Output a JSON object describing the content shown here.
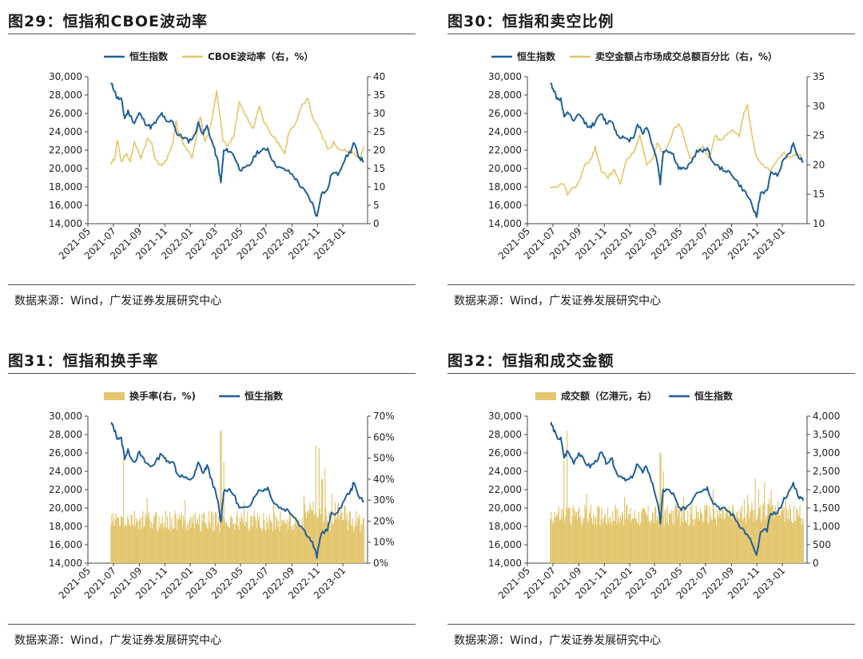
{
  "colors": {
    "index": "#1f5f99",
    "secondary": "#e6c565",
    "bar": "#e3c66e"
  },
  "months": [
    "2021-05",
    "2021-07",
    "2021-09",
    "2021-11",
    "2022-01",
    "2022-03",
    "2022-05",
    "2022-07",
    "2022-09",
    "2022-11",
    "2023-01"
  ],
  "hsi_shape": [
    [
      "2021-06-25",
      29300
    ],
    [
      "2021-07-01",
      28800
    ],
    [
      "2021-07-10",
      27700
    ],
    [
      "2021-07-20",
      27500
    ],
    [
      "2021-07-28",
      25500
    ],
    [
      "2021-08-05",
      26200
    ],
    [
      "2021-08-20",
      25000
    ],
    [
      "2021-09-01",
      26000
    ],
    [
      "2021-09-15",
      25000
    ],
    [
      "2021-09-28",
      24500
    ],
    [
      "2021-10-10",
      25000
    ],
    [
      "2021-10-25",
      26000
    ],
    [
      "2021-11-05",
      25000
    ],
    [
      "2021-11-20",
      25200
    ],
    [
      "2021-12-01",
      23700
    ],
    [
      "2021-12-15",
      23400
    ],
    [
      "2021-12-28",
      23000
    ],
    [
      "2022-01-10",
      23500
    ],
    [
      "2022-01-20",
      24900
    ],
    [
      "2022-02-01",
      23800
    ],
    [
      "2022-02-10",
      24600
    ],
    [
      "2022-02-25",
      22500
    ],
    [
      "2022-03-08",
      20700
    ],
    [
      "2022-03-15",
      18400
    ],
    [
      "2022-03-22",
      21900
    ],
    [
      "2022-04-01",
      22000
    ],
    [
      "2022-04-15",
      21500
    ],
    [
      "2022-04-28",
      20000
    ],
    [
      "2022-05-10",
      19900
    ],
    [
      "2022-05-25",
      20500
    ],
    [
      "2022-06-10",
      21800
    ],
    [
      "2022-06-25",
      22000
    ],
    [
      "2022-07-05",
      22200
    ],
    [
      "2022-07-20",
      20600
    ],
    [
      "2022-08-05",
      20000
    ],
    [
      "2022-08-20",
      19800
    ],
    [
      "2022-09-05",
      19200
    ],
    [
      "2022-09-20",
      18200
    ],
    [
      "2022-10-05",
      17300
    ],
    [
      "2022-10-20",
      16200
    ],
    [
      "2022-10-31",
      14700
    ],
    [
      "2022-11-10",
      17300
    ],
    [
      "2022-11-25",
      17600
    ],
    [
      "2022-12-05",
      19500
    ],
    [
      "2022-12-20",
      19400
    ],
    [
      "2023-01-05",
      21000
    ],
    [
      "2023-01-20",
      21900
    ],
    [
      "2023-01-27",
      22700
    ],
    [
      "2023-02-10",
      21200
    ],
    [
      "2023-02-20",
      20800
    ]
  ],
  "panels": [
    {
      "title": "图29：恒指和CBOE波动率",
      "source": "数据来源：Wind，广发证券发展研究中心",
      "chart_data": {
        "type": "line",
        "legend": "top",
        "series": [
          {
            "name": "恒生指数",
            "axis": "left"
          },
          {
            "name": "CBOE波动率（右，%）",
            "axis": "right",
            "points": [
              [
                "2021-06-25",
                16
              ],
              [
                "2021-07-05",
                18
              ],
              [
                "2021-07-10",
                23
              ],
              [
                "2021-07-20",
                17
              ],
              [
                "2021-08-01",
                19
              ],
              [
                "2021-08-10",
                17
              ],
              [
                "2021-08-20",
                22
              ],
              [
                "2021-09-05",
                18
              ],
              [
                "2021-09-20",
                23
              ],
              [
                "2021-10-01",
                22
              ],
              [
                "2021-10-10",
                17
              ],
              [
                "2021-10-25",
                16
              ],
              [
                "2021-11-05",
                17
              ],
              [
                "2021-11-20",
                22
              ],
              [
                "2021-11-28",
                28
              ],
              [
                "2021-12-05",
                24
              ],
              [
                "2021-12-20",
                21
              ],
              [
                "2022-01-05",
                18
              ],
              [
                "2022-01-25",
                29
              ],
              [
                "2022-02-05",
                22
              ],
              [
                "2022-02-20",
                27
              ],
              [
                "2022-03-05",
                36
              ],
              [
                "2022-03-20",
                23
              ],
              [
                "2022-04-01",
                21
              ],
              [
                "2022-04-15",
                24
              ],
              [
                "2022-04-28",
                33
              ],
              [
                "2022-05-10",
                30
              ],
              [
                "2022-05-20",
                28
              ],
              [
                "2022-06-01",
                26
              ],
              [
                "2022-06-15",
                32
              ],
              [
                "2022-06-25",
                28
              ],
              [
                "2022-07-10",
                25
              ],
              [
                "2022-07-25",
                23
              ],
              [
                "2022-08-05",
                21
              ],
              [
                "2022-08-15",
                19
              ],
              [
                "2022-08-25",
                25
              ],
              [
                "2022-09-10",
                27
              ],
              [
                "2022-09-25",
                32
              ],
              [
                "2022-10-10",
                34
              ],
              [
                "2022-10-20",
                29
              ],
              [
                "2022-11-05",
                26
              ],
              [
                "2022-11-15",
                23
              ],
              [
                "2022-11-28",
                20
              ],
              [
                "2022-12-10",
                22
              ],
              [
                "2022-12-25",
                20
              ],
              [
                "2023-01-10",
                20
              ],
              [
                "2023-01-25",
                19
              ],
              [
                "2023-02-10",
                18
              ],
              [
                "2023-02-20",
                21
              ]
            ]
          }
        ],
        "y_left": {
          "min": 14000,
          "max": 30000,
          "ticks": [
            "14,000",
            "16,000",
            "18,000",
            "20,000",
            "22,000",
            "24,000",
            "26,000",
            "28,000",
            "30,000"
          ]
        },
        "y_right": {
          "min": 0,
          "max": 40,
          "ticks": [
            "0",
            "5",
            "10",
            "15",
            "20",
            "25",
            "30",
            "35",
            "40"
          ]
        }
      }
    },
    {
      "title": "图30：恒指和卖空比例",
      "source": "数据来源：Wind，广发证券发展研究中心",
      "chart_data": {
        "type": "line",
        "legend": "top",
        "series": [
          {
            "name": "恒生指数",
            "axis": "left"
          },
          {
            "name": "卖空金额占市场成交总额百分比（右，%）",
            "axis": "right",
            "points": [
              [
                "2021-06-25",
                16
              ],
              [
                "2021-07-10",
                16
              ],
              [
                "2021-07-25",
                17
              ],
              [
                "2021-08-05",
                15
              ],
              [
                "2021-08-20",
                16
              ],
              [
                "2021-09-01",
                17
              ],
              [
                "2021-09-15",
                20
              ],
              [
                "2021-10-01",
                21
              ],
              [
                "2021-10-10",
                23
              ],
              [
                "2021-10-25",
                19
              ],
              [
                "2021-11-10",
                18
              ],
              [
                "2021-11-25",
                19
              ],
              [
                "2021-12-10",
                17
              ],
              [
                "2021-12-25",
                21
              ],
              [
                "2022-01-10",
                22
              ],
              [
                "2022-01-25",
                25
              ],
              [
                "2022-02-10",
                20
              ],
              [
                "2022-02-25",
                21
              ],
              [
                "2022-03-08",
                24
              ],
              [
                "2022-03-20",
                22
              ],
              [
                "2022-04-01",
                23
              ],
              [
                "2022-04-15",
                26
              ],
              [
                "2022-04-28",
                27
              ],
              [
                "2022-05-10",
                25
              ],
              [
                "2022-05-25",
                21
              ],
              [
                "2022-06-10",
                22
              ],
              [
                "2022-06-25",
                23
              ],
              [
                "2022-07-10",
                21
              ],
              [
                "2022-07-25",
                25
              ],
              [
                "2022-08-05",
                24
              ],
              [
                "2022-08-20",
                25
              ],
              [
                "2022-09-05",
                26
              ],
              [
                "2022-09-20",
                25
              ],
              [
                "2022-10-01",
                29
              ],
              [
                "2022-10-10",
                30
              ],
              [
                "2022-10-20",
                25
              ],
              [
                "2022-11-01",
                21
              ],
              [
                "2022-11-15",
                20
              ],
              [
                "2022-12-01",
                19
              ],
              [
                "2022-12-20",
                21
              ],
              [
                "2023-01-05",
                22
              ],
              [
                "2023-01-20",
                21
              ],
              [
                "2023-02-05",
                22
              ],
              [
                "2023-02-20",
                21
              ]
            ]
          }
        ],
        "y_left": {
          "min": 14000,
          "max": 30000,
          "ticks": [
            "14,000",
            "16,000",
            "18,000",
            "20,000",
            "22,000",
            "24,000",
            "26,000",
            "28,000",
            "30,000"
          ]
        },
        "y_right": {
          "min": 10,
          "max": 35,
          "ticks": [
            "10",
            "15",
            "20",
            "25",
            "30",
            "35"
          ]
        }
      }
    },
    {
      "title": "图31：恒指和换手率",
      "source": "数据来源：Wind，广发证券发展研究中心",
      "chart_data": {
        "type": "bar+line",
        "legend": "top",
        "series": [
          {
            "name": "换手率(右，%)",
            "axis": "right",
            "kind": "bar",
            "base": 20,
            "noise": 5,
            "spikes": [
              [
                "2021-07-25",
                50
              ],
              [
                "2021-09-20",
                31
              ],
              [
                "2021-12-20",
                30
              ],
              [
                "2022-03-15",
                63
              ],
              [
                "2022-03-22",
                48
              ],
              [
                "2022-05-10",
                29
              ],
              [
                "2022-07-20",
                29
              ],
              [
                "2022-09-30",
                32
              ],
              [
                "2022-10-28",
                56
              ],
              [
                "2022-11-05",
                55
              ],
              [
                "2022-11-12",
                40
              ],
              [
                "2022-11-20",
                45
              ],
              [
                "2022-12-05",
                33
              ]
            ]
          },
          {
            "name": "恒生指数",
            "axis": "left",
            "kind": "line"
          }
        ],
        "y_left": {
          "min": 14000,
          "max": 30000,
          "ticks": [
            "14,000",
            "16,000",
            "18,000",
            "20,000",
            "22,000",
            "24,000",
            "26,000",
            "28,000",
            "30,000"
          ]
        },
        "y_right": {
          "min": 0,
          "max": 70,
          "ticks": [
            "0%",
            "10%",
            "20%",
            "30%",
            "40%",
            "50%",
            "60%",
            "70%"
          ]
        }
      }
    },
    {
      "title": "图32：恒指和成交金额",
      "source": "数据来源：Wind，广发证券发展研究中心",
      "chart_data": {
        "type": "bar+line",
        "legend": "top",
        "series": [
          {
            "name": "成交额（亿港元，右）",
            "axis": "right",
            "kind": "bar",
            "base": 1300,
            "noise": 300,
            "spikes": [
              [
                "2021-07-28",
                2800
              ],
              [
                "2021-08-05",
                3600
              ],
              [
                "2021-09-20",
                1900
              ],
              [
                "2021-12-20",
                1800
              ],
              [
                "2022-03-15",
                3000
              ],
              [
                "2022-03-22",
                2500
              ],
              [
                "2022-05-10",
                1800
              ],
              [
                "2022-07-20",
                2000
              ],
              [
                "2022-10-28",
                2300
              ],
              [
                "2022-11-05",
                2000
              ],
              [
                "2022-11-20",
                2200
              ],
              [
                "2022-12-05",
                2000
              ]
            ]
          },
          {
            "name": "恒生指数",
            "axis": "left",
            "kind": "line"
          }
        ],
        "y_left": {
          "min": 14000,
          "max": 30000,
          "ticks": [
            "14,000",
            "16,000",
            "18,000",
            "20,000",
            "22,000",
            "24,000",
            "26,000",
            "28,000",
            "30,000"
          ]
        },
        "y_right": {
          "min": 0,
          "max": 4000,
          "ticks": [
            "0",
            "500",
            "1,000",
            "1,500",
            "2,000",
            "2,500",
            "3,000",
            "3,500",
            "4,000"
          ]
        }
      }
    }
  ]
}
